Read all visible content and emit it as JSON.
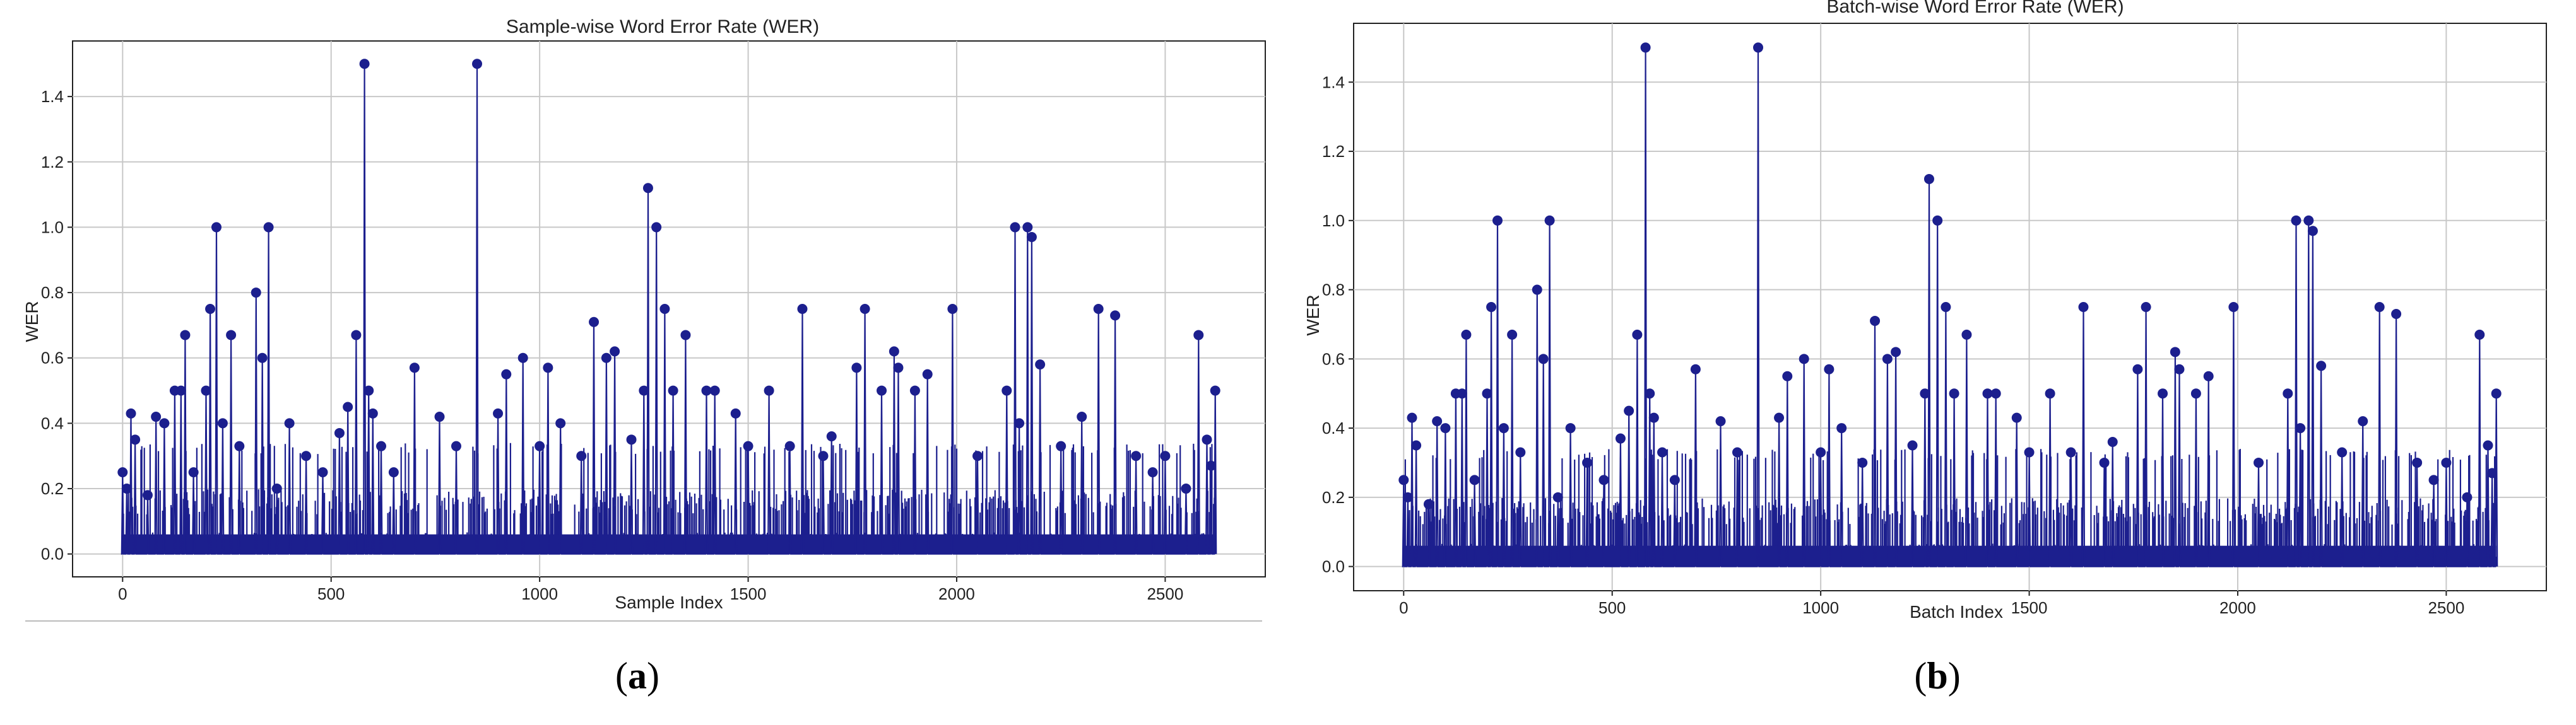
{
  "chart_data": [
    {
      "panel_label": "(a)",
      "panel_letter": "a",
      "type": "line",
      "style": "stem-like line with circle markers",
      "title": "Sample-wise Word Error Rate (WER)",
      "xlabel": "Sample Index",
      "ylabel": "WER",
      "xlim": [
        -120,
        2740
      ],
      "ylim": [
        -0.07,
        1.57
      ],
      "xticks": [
        "0",
        "500",
        "1000",
        "1500",
        "2000",
        "2500"
      ],
      "yticks": [
        "0.0",
        "0.2",
        "0.4",
        "0.6",
        "0.8",
        "1.0",
        "1.2",
        "1.4"
      ],
      "grid": true,
      "color": "#1c1f8e",
      "series": [
        {
          "name": "",
          "x": [
            0,
            10,
            20,
            30,
            60,
            80,
            100,
            125,
            140,
            150,
            170,
            200,
            210,
            225,
            240,
            260,
            280,
            320,
            335,
            350,
            370,
            400,
            440,
            480,
            520,
            540,
            560,
            580,
            590,
            600,
            620,
            650,
            700,
            760,
            800,
            850,
            900,
            920,
            960,
            1000,
            1020,
            1050,
            1100,
            1130,
            1160,
            1180,
            1220,
            1250,
            1260,
            1280,
            1300,
            1320,
            1350,
            1400,
            1420,
            1470,
            1500,
            1550,
            1600,
            1630,
            1680,
            1700,
            1760,
            1780,
            1820,
            1850,
            1860,
            1900,
            1930,
            1990,
            2050,
            2120,
            2140,
            2150,
            2170,
            2180,
            2200,
            2250,
            2300,
            2340,
            2380,
            2430,
            2470,
            2500,
            2550,
            2580,
            2600,
            2610,
            2620
          ],
          "y": [
            0.25,
            0.2,
            0.43,
            0.35,
            0.18,
            0.42,
            0.4,
            0.5,
            0.5,
            0.67,
            0.25,
            0.5,
            0.75,
            1.0,
            0.4,
            0.67,
            0.33,
            0.8,
            0.6,
            1.0,
            0.2,
            0.4,
            0.3,
            0.25,
            0.37,
            0.45,
            0.67,
            1.5,
            0.5,
            0.43,
            0.33,
            0.25,
            0.57,
            0.42,
            0.33,
            1.5,
            0.43,
            0.55,
            0.6,
            0.33,
            0.57,
            0.4,
            0.3,
            0.71,
            0.6,
            0.62,
            0.35,
            0.5,
            1.12,
            1.0,
            0.75,
            0.5,
            0.67,
            0.5,
            0.5,
            0.43,
            0.33,
            0.5,
            0.33,
            0.75,
            0.3,
            0.36,
            0.57,
            0.75,
            0.5,
            0.62,
            0.57,
            0.5,
            0.55,
            0.75,
            0.3,
            0.5,
            1.0,
            0.4,
            1.0,
            0.97,
            0.58,
            0.33,
            0.42,
            0.75,
            0.73,
            0.3,
            0.25,
            0.3,
            0.2,
            0.67,
            0.35,
            0.27,
            0.5
          ]
        }
      ]
    },
    {
      "panel_label": "(b)",
      "panel_letter": "b",
      "type": "line",
      "style": "stem-like line with circle markers",
      "title": "Batch-wise Word Error Rate (WER)",
      "xlabel": "Batch Index",
      "ylabel": "WER",
      "xlim": [
        -120,
        2740
      ],
      "ylim": [
        -0.07,
        1.57
      ],
      "xticks": [
        "0",
        "500",
        "1000",
        "1500",
        "2000",
        "2500"
      ],
      "yticks": [
        "0.0",
        "0.2",
        "0.4",
        "0.6",
        "0.8",
        "1.0",
        "1.2",
        "1.4"
      ],
      "grid": true,
      "color": "#1c1f8e",
      "series": [
        {
          "name": "",
          "x": [
            0,
            10,
            20,
            30,
            60,
            80,
            100,
            125,
            140,
            150,
            170,
            200,
            210,
            225,
            240,
            260,
            280,
            320,
            335,
            350,
            370,
            400,
            440,
            480,
            520,
            540,
            560,
            580,
            590,
            600,
            620,
            650,
            700,
            760,
            800,
            850,
            900,
            920,
            960,
            1000,
            1020,
            1050,
            1100,
            1130,
            1160,
            1180,
            1220,
            1250,
            1260,
            1280,
            1300,
            1320,
            1350,
            1400,
            1420,
            1470,
            1500,
            1550,
            1600,
            1630,
            1680,
            1700,
            1760,
            1780,
            1820,
            1850,
            1860,
            1900,
            1930,
            1990,
            2050,
            2120,
            2140,
            2150,
            2170,
            2180,
            2200,
            2250,
            2300,
            2340,
            2380,
            2430,
            2470,
            2500,
            2550,
            2580,
            2600,
            2610,
            2620
          ],
          "y": [
            0.25,
            0.2,
            0.43,
            0.35,
            0.18,
            0.42,
            0.4,
            0.5,
            0.5,
            0.67,
            0.25,
            0.5,
            0.75,
            1.0,
            0.4,
            0.67,
            0.33,
            0.8,
            0.6,
            1.0,
            0.2,
            0.4,
            0.3,
            0.25,
            0.37,
            0.45,
            0.67,
            1.5,
            0.5,
            0.43,
            0.33,
            0.25,
            0.57,
            0.42,
            0.33,
            1.5,
            0.43,
            0.55,
            0.6,
            0.33,
            0.57,
            0.4,
            0.3,
            0.71,
            0.6,
            0.62,
            0.35,
            0.5,
            1.12,
            1.0,
            0.75,
            0.5,
            0.67,
            0.5,
            0.5,
            0.43,
            0.33,
            0.5,
            0.33,
            0.75,
            0.3,
            0.36,
            0.57,
            0.75,
            0.5,
            0.62,
            0.57,
            0.5,
            0.55,
            0.75,
            0.3,
            0.5,
            1.0,
            0.4,
            1.0,
            0.97,
            0.58,
            0.33,
            0.42,
            0.75,
            0.73,
            0.3,
            0.25,
            0.3,
            0.2,
            0.67,
            0.35,
            0.27,
            0.5
          ]
        }
      ]
    }
  ]
}
